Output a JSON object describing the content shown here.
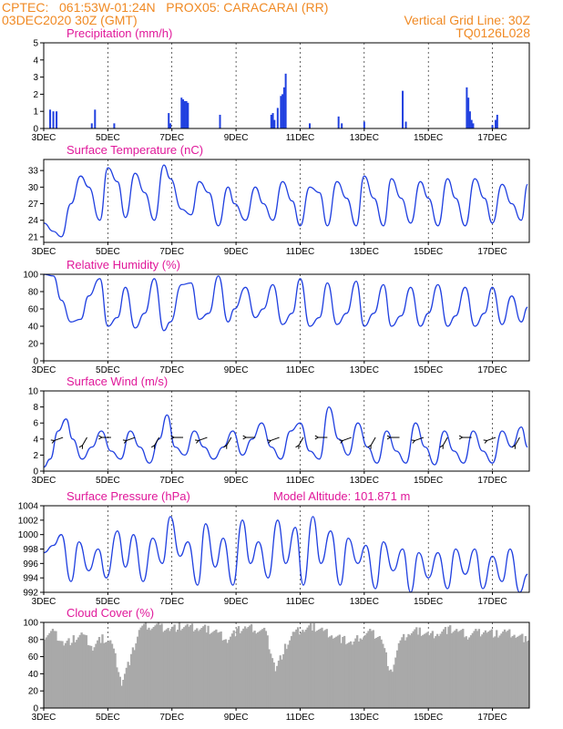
{
  "header": {
    "line1_left": "CPTEC:   061:53W-01:24N   PROX05: CARACARAI (RR)",
    "line2_left": "03DEC2020 30Z (GMT)",
    "line2_right": "Vertical Grid Line: 30Z",
    "line3_right": "TQ0126L028"
  },
  "colors": {
    "header": "#f08a24",
    "title": "#e0189a",
    "line": "#2040e0",
    "cloud": "#a9a9a9"
  },
  "x_ticks": [
    "3DEC",
    "5DEC",
    "7DEC",
    "9DEC",
    "11DEC",
    "13DEC",
    "15DEC",
    "17DEC"
  ],
  "chart_data": [
    {
      "type": "bar",
      "title": "Precipitation (mm/h)",
      "ylim": [
        0,
        5
      ],
      "yticks": [
        0,
        1,
        2,
        3,
        4,
        5
      ],
      "x_days": [
        3.2,
        3.3,
        3.4,
        4.5,
        4.6,
        5.2,
        6.9,
        6.95,
        7.3,
        7.35,
        7.4,
        7.45,
        7.5,
        8.5,
        10.1,
        10.15,
        10.2,
        10.3,
        10.4,
        10.45,
        10.5,
        10.55,
        11.3,
        12.2,
        12.3,
        13.0,
        14.2,
        14.3,
        16.2,
        16.25,
        16.3,
        16.35,
        16.4,
        17.0,
        17.1,
        17.15
      ],
      "values": [
        1.1,
        1.0,
        1.0,
        0.3,
        1.1,
        0.3,
        0.9,
        0.3,
        1.8,
        1.7,
        1.6,
        1.6,
        1.5,
        0.8,
        0.8,
        0.9,
        0.5,
        1.2,
        1.9,
        2.0,
        2.4,
        3.2,
        0.3,
        0.7,
        0.3,
        0.4,
        2.2,
        0.4,
        2.4,
        1.8,
        1.0,
        0.5,
        0.3,
        0.2,
        0.5,
        0.8
      ]
    },
    {
      "type": "line",
      "title": "Surface Temperature (nC)",
      "ylim": [
        20,
        35
      ],
      "yticks": [
        21,
        24,
        27,
        30,
        33
      ],
      "x_days": [
        3.0,
        3.3,
        3.55,
        3.85,
        4.15,
        4.4,
        4.75,
        5.0,
        5.3,
        5.55,
        5.85,
        6.15,
        6.45,
        6.75,
        6.95,
        7.3,
        7.6,
        7.85,
        8.15,
        8.45,
        8.75,
        8.95,
        9.3,
        9.6,
        9.85,
        10.15,
        10.45,
        10.75,
        11.0,
        11.3,
        11.6,
        11.85,
        12.15,
        12.45,
        12.75,
        13.0,
        13.3,
        13.6,
        13.85,
        14.15,
        14.45,
        14.75,
        15.0,
        15.3,
        15.6,
        15.85,
        16.15,
        16.45,
        16.75,
        17.0,
        17.3,
        17.6,
        17.9,
        18.1
      ],
      "values": [
        23.5,
        22,
        21,
        27,
        32,
        30,
        24,
        33.5,
        31,
        24.5,
        32.5,
        29,
        24,
        34,
        31.5,
        26,
        25,
        31,
        29,
        23,
        30,
        27,
        24,
        30,
        27,
        24,
        31,
        27.5,
        23,
        30,
        29,
        23,
        31,
        28,
        23,
        32,
        28,
        23,
        31.5,
        28,
        23.5,
        31,
        28,
        23,
        31.5,
        28,
        23,
        31.5,
        28,
        23.5,
        30.5,
        27,
        24,
        30.5
      ]
    },
    {
      "type": "line",
      "title": "Relative Humidity (%)",
      "ylim": [
        0,
        100
      ],
      "yticks": [
        0,
        20,
        40,
        60,
        80,
        100
      ],
      "x_days": [
        3.0,
        3.3,
        3.55,
        3.85,
        4.15,
        4.4,
        4.75,
        5.0,
        5.3,
        5.55,
        5.85,
        6.15,
        6.45,
        6.75,
        6.95,
        7.3,
        7.6,
        7.85,
        8.15,
        8.45,
        8.75,
        8.95,
        9.3,
        9.6,
        9.85,
        10.15,
        10.45,
        10.75,
        11.0,
        11.3,
        11.6,
        11.85,
        12.15,
        12.45,
        12.75,
        13.0,
        13.3,
        13.6,
        13.85,
        14.15,
        14.45,
        14.75,
        15.0,
        15.3,
        15.6,
        15.85,
        16.15,
        16.45,
        16.75,
        17.0,
        17.3,
        17.6,
        17.9,
        18.1
      ],
      "values": [
        100,
        98,
        70,
        45,
        48,
        75,
        95,
        40,
        50,
        85,
        38,
        55,
        95,
        35,
        45,
        88,
        90,
        48,
        55,
        98,
        45,
        60,
        85,
        50,
        60,
        88,
        42,
        55,
        95,
        40,
        50,
        90,
        42,
        55,
        92,
        40,
        55,
        88,
        40,
        52,
        85,
        40,
        55,
        88,
        40,
        52,
        85,
        40,
        55,
        85,
        42,
        75,
        45,
        62
      ]
    },
    {
      "type": "line",
      "title": "Surface Wind (m/s)",
      "ylim": [
        0,
        10
      ],
      "yticks": [
        0,
        2,
        4,
        6,
        8,
        10
      ],
      "x_days": [
        3.0,
        3.2,
        3.45,
        3.7,
        3.9,
        4.2,
        4.5,
        4.8,
        5.1,
        5.4,
        5.7,
        6.0,
        6.3,
        6.6,
        6.85,
        7.1,
        7.4,
        7.7,
        8.0,
        8.3,
        8.6,
        8.9,
        9.2,
        9.5,
        9.8,
        10.1,
        10.4,
        10.7,
        11.0,
        11.3,
        11.6,
        11.9,
        12.2,
        12.5,
        12.8,
        13.1,
        13.4,
        13.7,
        14.0,
        14.3,
        14.6,
        14.9,
        15.2,
        15.5,
        15.8,
        16.1,
        16.4,
        16.7,
        17.0,
        17.3,
        17.6,
        17.9,
        18.1
      ],
      "values": [
        0.5,
        1.5,
        5,
        6.5,
        4,
        1.5,
        3,
        5,
        2.5,
        1.5,
        5,
        3,
        1,
        4,
        7,
        3,
        2,
        5,
        3,
        1.5,
        3,
        5,
        2,
        4,
        6,
        3,
        1.5,
        5,
        6,
        2.5,
        1.5,
        8,
        4,
        2,
        6,
        3,
        1,
        5,
        2.5,
        1,
        6,
        3,
        0.8,
        5,
        2.5,
        1,
        5,
        2.5,
        1,
        5,
        3,
        5.5,
        3
      ]
    },
    {
      "type": "line",
      "title": "Surface Pressure (hPa)",
      "annotation": "Model Altitude: 101.871 m",
      "ylim": [
        992,
        1004
      ],
      "yticks": [
        992,
        994,
        996,
        998,
        1000,
        1002,
        1004
      ],
      "x_days": [
        3.0,
        3.3,
        3.55,
        3.85,
        4.1,
        4.4,
        4.7,
        4.95,
        5.3,
        5.55,
        5.8,
        6.1,
        6.4,
        6.7,
        6.95,
        7.25,
        7.5,
        7.8,
        8.05,
        8.35,
        8.6,
        8.9,
        9.2,
        9.45,
        9.7,
        10.0,
        10.3,
        10.55,
        10.85,
        11.1,
        11.4,
        11.65,
        11.95,
        12.25,
        12.5,
        12.8,
        13.05,
        13.35,
        13.6,
        13.9,
        14.2,
        14.45,
        14.7,
        15.0,
        15.3,
        15.6,
        15.85,
        16.15,
        16.45,
        16.7,
        17.0,
        17.3,
        17.55,
        17.85,
        18.1
      ],
      "values": [
        997.5,
        998.5,
        1000,
        993.5,
        999,
        995,
        998,
        994,
        1000.5,
        995.5,
        1000,
        993.5,
        999.5,
        996,
        1002.5,
        997,
        999,
        993,
        1001.5,
        995.5,
        999.5,
        993,
        1002,
        996,
        999,
        994,
        1002,
        996,
        1001,
        993,
        1002.5,
        996,
        1000.5,
        993,
        999.5,
        996,
        998.5,
        992.5,
        999,
        995,
        998,
        992,
        997.5,
        994,
        997.5,
        992.5,
        998,
        994.5,
        998,
        992.5,
        997,
        993.5,
        998,
        992,
        994.5
      ]
    },
    {
      "type": "area",
      "title": "Cloud Cover (%)",
      "ylim": [
        0,
        100
      ],
      "yticks": [
        0,
        20,
        40,
        60,
        80,
        100
      ],
      "x_days": [
        3.0,
        3.3,
        3.6,
        3.9,
        4.2,
        4.5,
        4.8,
        5.1,
        5.4,
        5.7,
        6.0,
        6.3,
        6.6,
        6.9,
        7.2,
        7.5,
        7.8,
        8.1,
        8.4,
        8.7,
        9.0,
        9.3,
        9.6,
        9.9,
        10.2,
        10.5,
        10.8,
        11.1,
        11.4,
        11.7,
        12.0,
        12.3,
        12.6,
        12.9,
        13.2,
        13.5,
        13.8,
        14.1,
        14.4,
        14.7,
        15.0,
        15.3,
        15.6,
        15.9,
        16.2,
        16.5,
        16.8,
        17.1,
        17.4,
        17.7,
        18.0,
        18.1
      ],
      "values": [
        85,
        88,
        75,
        80,
        85,
        70,
        82,
        75,
        30,
        60,
        95,
        96,
        95,
        92,
        95,
        94,
        93,
        92,
        88,
        80,
        90,
        94,
        92,
        88,
        45,
        70,
        88,
        92,
        95,
        90,
        85,
        80,
        75,
        85,
        88,
        82,
        40,
        78,
        88,
        90,
        85,
        88,
        92,
        90,
        85,
        88,
        90,
        86,
        88,
        85,
        80,
        75
      ]
    }
  ]
}
